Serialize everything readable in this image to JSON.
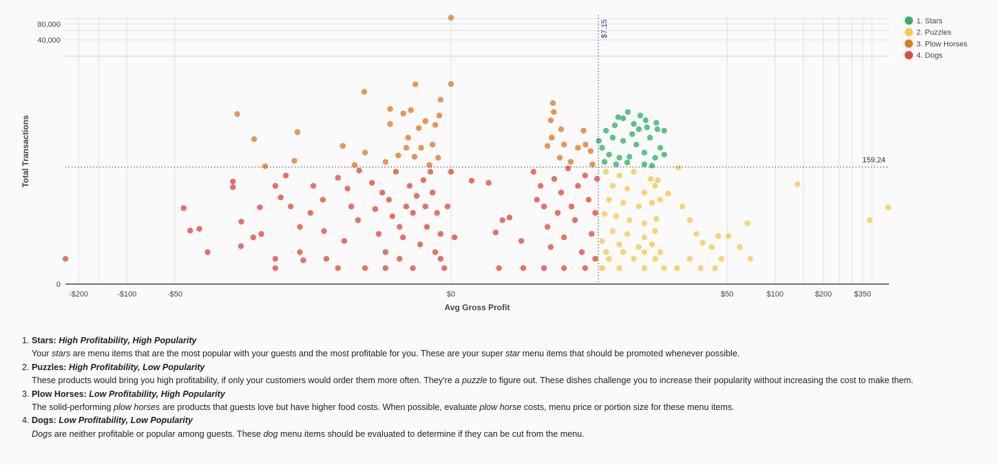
{
  "chart_data": {
    "type": "scatter",
    "xlabel": "Avg Gross Profit",
    "ylabel": "Total Transactions",
    "x_scale": "symmetric-log",
    "y_scale": "log",
    "xlim": [
      -240,
      510
    ],
    "ylim": [
      0,
      110000
    ],
    "grid": true,
    "legend_position": "top-right",
    "x_ticks": [
      {
        "value": -200,
        "label": "-$200"
      },
      {
        "value": -100,
        "label": "-$100"
      },
      {
        "value": -50,
        "label": "-$50"
      },
      {
        "value": 0,
        "label": "$0"
      },
      {
        "value": 50,
        "label": "$50"
      },
      {
        "value": 100,
        "label": "$100"
      },
      {
        "value": 200,
        "label": "$200"
      },
      {
        "value": 350,
        "label": "$350"
      }
    ],
    "x_gridlines": [
      -200,
      -150,
      -100,
      -50,
      0,
      50,
      100,
      150,
      200,
      250,
      300,
      350,
      400
    ],
    "y_ticks": [
      {
        "value": 0,
        "label": "0"
      },
      {
        "value": 40000,
        "label": "40,000"
      },
      {
        "value": 80000,
        "label": "80,000"
      }
    ],
    "y_gridlines": [
      20000,
      40000,
      60000,
      80000,
      100000
    ],
    "reference_lines": {
      "x": {
        "value": 7.15,
        "label": "$7.15",
        "color": "#1a3a8a"
      },
      "y": {
        "value": 159.24,
        "label": "159.24",
        "color": "#333333"
      }
    },
    "series": [
      {
        "name": "1. Stars",
        "color": "#2eb366",
        "points": [
          [
            11.4,
            1750
          ],
          [
            9.8,
            1400
          ],
          [
            13.8,
            1500
          ],
          [
            12.5,
            1040
          ],
          [
            15.3,
            900
          ],
          [
            17.9,
            830
          ],
          [
            19.8,
            780
          ],
          [
            8.1,
            780
          ],
          [
            9.0,
            575
          ],
          [
            10.6,
            500
          ],
          [
            13.0,
            425
          ],
          [
            16.0,
            575
          ],
          [
            18.7,
            370
          ],
          [
            7.6,
            370
          ],
          [
            8.5,
            275
          ],
          [
            10.0,
            240
          ],
          [
            11.7,
            250
          ],
          [
            14.7,
            300
          ],
          [
            17.3,
            240
          ],
          [
            19.8,
            275
          ],
          [
            7.9,
            200
          ],
          [
            9.5,
            180
          ],
          [
            11.3,
            195
          ],
          [
            14.7,
            180
          ],
          [
            16.5,
            170
          ],
          [
            7.2,
            500
          ],
          [
            9.3,
            980
          ],
          [
            12.2,
            670
          ],
          [
            15.0,
            1220
          ],
          [
            17.6,
            1100
          ],
          [
            10.6,
            1330
          ],
          [
            13.5,
            830
          ]
        ]
      },
      {
        "name": "2. Puzzles",
        "color": "#f4cb4a",
        "points": [
          [
            138,
            75
          ],
          [
            387,
            15
          ],
          [
            505,
            27
          ],
          [
            67,
            13
          ],
          [
            70,
            2
          ],
          [
            60,
            4
          ],
          [
            51,
            7
          ],
          [
            44,
            7
          ],
          [
            34,
            1
          ],
          [
            40,
            4
          ],
          [
            24.5,
            155
          ],
          [
            21,
            50
          ],
          [
            26,
            28
          ],
          [
            29,
            15
          ],
          [
            32,
            7.8
          ],
          [
            35,
            5
          ],
          [
            29,
            2
          ],
          [
            24,
            1
          ],
          [
            8.1,
            130
          ],
          [
            10,
            110
          ],
          [
            12.5,
            130
          ],
          [
            16.2,
            95
          ],
          [
            18,
            90
          ],
          [
            9,
            70
          ],
          [
            11.3,
            62
          ],
          [
            14.7,
            52
          ],
          [
            17.3,
            70
          ],
          [
            8.5,
            38
          ],
          [
            10.6,
            33
          ],
          [
            13.5,
            28
          ],
          [
            16.5,
            33
          ],
          [
            18.7,
            38
          ],
          [
            7.9,
            20
          ],
          [
            9.5,
            18
          ],
          [
            11.7,
            15
          ],
          [
            14.7,
            13
          ],
          [
            17.6,
            16
          ],
          [
            9,
            9
          ],
          [
            11.3,
            7.8
          ],
          [
            14.7,
            6.6
          ],
          [
            17.3,
            9
          ],
          [
            7.6,
            5.5
          ],
          [
            10,
            4.6
          ],
          [
            13.5,
            4
          ],
          [
            16.5,
            4.6
          ],
          [
            8.1,
            3
          ],
          [
            10.6,
            3
          ],
          [
            14.7,
            3
          ],
          [
            18.7,
            3
          ],
          [
            8.5,
            2
          ],
          [
            12.5,
            2
          ],
          [
            17.3,
            2
          ],
          [
            7.6,
            1
          ],
          [
            10,
            1
          ],
          [
            14.7,
            1
          ],
          [
            19.8,
            1
          ],
          [
            46,
            2
          ],
          [
            42,
            1
          ]
        ]
      },
      {
        "name": "3. Plow Horses",
        "color": "#e8761f",
        "points": [
          [
            0,
            105000
          ],
          [
            0,
            5900
          ],
          [
            -0.66,
            5800
          ],
          [
            -2.44,
            4200
          ],
          [
            -1.38,
            2000
          ],
          [
            -0.77,
            1900
          ],
          [
            -0.97,
            1640
          ],
          [
            -0.18,
            1500
          ],
          [
            -0.16,
            3000
          ],
          [
            -0.25,
            1000
          ],
          [
            -0.44,
            1180
          ],
          [
            -1.38,
            1040
          ],
          [
            -0.58,
            870
          ],
          [
            -0.84,
            575
          ],
          [
            -0.3,
            425
          ],
          [
            -0.53,
            370
          ],
          [
            -0.89,
            370
          ],
          [
            -0.68,
            250
          ],
          [
            -1.12,
            265
          ],
          [
            -0.2,
            240
          ],
          [
            -0.36,
            175
          ],
          [
            -1.54,
            200
          ],
          [
            -2.4,
            300
          ],
          [
            -3.66,
            400
          ],
          [
            -7.9,
            730
          ],
          [
            -8.3,
            210
          ],
          [
            -15.5,
            540
          ],
          [
            -20,
            1600
          ],
          [
            -13.1,
            165
          ],
          [
            -2.95,
            175
          ],
          [
            3.27,
            2580
          ],
          [
            3.32,
            1750
          ],
          [
            3.14,
            1220
          ],
          [
            3.2,
            575
          ],
          [
            3.8,
            830
          ],
          [
            4.0,
            425
          ],
          [
            5.1,
            370
          ],
          [
            5.8,
            425
          ],
          [
            6.3,
            320
          ],
          [
            5.6,
            780
          ],
          [
            6.5,
            180
          ],
          [
            4.5,
            200
          ],
          [
            3.7,
            240
          ],
          [
            2.95,
            400
          ]
        ]
      },
      {
        "name": "4. Dogs",
        "color": "#e5473d",
        "points": [
          [
            -241,
            2
          ],
          [
            -44,
            26
          ],
          [
            -40,
            9.2
          ],
          [
            -35,
            10
          ],
          [
            -31,
            3
          ],
          [
            -21.3,
            85
          ],
          [
            -21.3,
            66
          ],
          [
            -18.9,
            4.2
          ],
          [
            -18.8,
            14
          ],
          [
            -15.7,
            6.6
          ],
          [
            -13.9,
            7.8
          ],
          [
            -14.2,
            27
          ],
          [
            -11.2,
            70
          ],
          [
            -11.2,
            2
          ],
          [
            -11.2,
            1
          ],
          [
            -10.3,
            42
          ],
          [
            -9.5,
            110
          ],
          [
            -8.8,
            28
          ],
          [
            -7.6,
            11
          ],
          [
            -7.6,
            3
          ],
          [
            -7.2,
            1.8
          ],
          [
            -6.4,
            21
          ],
          [
            -6.1,
            70
          ],
          [
            -5.2,
            38
          ],
          [
            -5.1,
            9
          ],
          [
            -4.9,
            2
          ],
          [
            -4.0,
            100
          ],
          [
            -4.0,
            1
          ],
          [
            -3.57,
            5.5
          ],
          [
            -3.36,
            62
          ],
          [
            -3.14,
            28
          ],
          [
            -2.76,
            15
          ],
          [
            -2.7,
            137
          ],
          [
            -2.4,
            1
          ],
          [
            -2.08,
            80
          ],
          [
            -1.94,
            25
          ],
          [
            -1.8,
            7.8
          ],
          [
            -1.66,
            52
          ],
          [
            -1.54,
            3
          ],
          [
            -1.42,
            38
          ],
          [
            -1.3,
            18
          ],
          [
            -1.19,
            130
          ],
          [
            -1.08,
            11
          ],
          [
            -0.98,
            6.6
          ],
          [
            -0.89,
            28
          ],
          [
            -0.8,
            70
          ],
          [
            -0.72,
            21
          ],
          [
            -0.63,
            45
          ],
          [
            -0.55,
            4.6
          ],
          [
            -0.48,
            90
          ],
          [
            -0.44,
            28
          ],
          [
            -0.41,
            11
          ],
          [
            -0.34,
            130
          ],
          [
            -0.3,
            52
          ],
          [
            -0.25,
            3
          ],
          [
            -0.22,
            21
          ],
          [
            -0.16,
            7.8
          ],
          [
            -0.1,
            1
          ],
          [
            -0.05,
            28
          ],
          [
            0,
            130
          ],
          [
            0.05,
            6.6
          ],
          [
            0.34,
            88
          ],
          [
            0.71,
            80
          ],
          [
            0.89,
            8.4
          ],
          [
            1.08,
            15
          ],
          [
            1.3,
            17
          ],
          [
            0.98,
            1
          ],
          [
            1.8,
            1
          ],
          [
            1.72,
            5.5
          ],
          [
            2.24,
            130
          ],
          [
            2.4,
            38
          ],
          [
            2.58,
            70
          ],
          [
            2.76,
            28
          ],
          [
            2.95,
            11
          ],
          [
            3.14,
            4
          ],
          [
            3.35,
            95
          ],
          [
            3.57,
            21
          ],
          [
            3.8,
            52
          ],
          [
            4.0,
            6.6
          ],
          [
            4.3,
            150
          ],
          [
            4.56,
            28
          ],
          [
            4.84,
            15
          ],
          [
            5.1,
            70
          ],
          [
            5.45,
            3
          ],
          [
            5.75,
            110
          ],
          [
            6.1,
            38
          ],
          [
            6.4,
            7.8
          ],
          [
            6.8,
            21
          ],
          [
            7.0,
            95
          ],
          [
            2.76,
            1
          ],
          [
            4.0,
            1
          ],
          [
            5.75,
            1
          ],
          [
            6.8,
            2
          ],
          [
            -0.72,
            1
          ],
          [
            -1.54,
            1
          ],
          [
            -1.08,
            2
          ],
          [
            -0.16,
            2
          ]
        ]
      }
    ]
  },
  "notes": [
    {
      "title": "Stars:",
      "subtitle": "High Profitability, High Popularity",
      "desc": [
        {
          "t": "Your "
        },
        {
          "t": "stars",
          "i": true
        },
        {
          "t": " are menu items that are the most popular with your guests and the most profitable for you. These are your super "
        },
        {
          "t": "star",
          "i": true
        },
        {
          "t": " menu items that should be promoted whenever possible."
        }
      ]
    },
    {
      "title": "Puzzles:",
      "subtitle": "High Profitability, Low Popularity",
      "desc": [
        {
          "t": "These products would bring you high profitability, if only your customers would order them more often. They're a "
        },
        {
          "t": "puzzle",
          "i": true
        },
        {
          "t": " to figure out. These dishes challenge you to increase their popularity without increasing the cost to make them."
        }
      ]
    },
    {
      "title": "Plow Horses:",
      "subtitle": "Low Profitability, High Popularity",
      "desc": [
        {
          "t": "The solid-performing "
        },
        {
          "t": "plow horses",
          "i": true
        },
        {
          "t": " are products that guests love but have higher food costs. When possible, evaluate "
        },
        {
          "t": "plow horse",
          "i": true
        },
        {
          "t": " costs, menu price or portion size for these menu items."
        }
      ]
    },
    {
      "title": "Dogs:",
      "subtitle": "Low Profitability, Low Popularity",
      "desc": [
        {
          "t": "Dogs",
          "i": true
        },
        {
          "t": " are neither profitable or popular among guests. These "
        },
        {
          "t": "dog",
          "i": true
        },
        {
          "t": " menu items should be evaluated to determine if they can be cut from the menu."
        }
      ]
    }
  ]
}
